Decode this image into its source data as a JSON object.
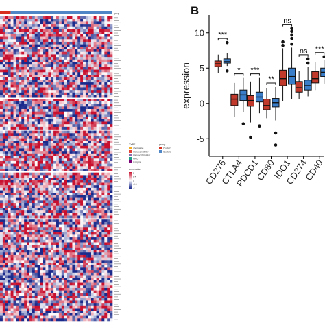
{
  "panel_b_label": "B",
  "chart_data": [
    {
      "type": "heatmap",
      "title": "",
      "top_annotation_label": "group",
      "column_groups": [
        {
          "name": "Cluster1",
          "color": "#d7301f",
          "columns": 4
        },
        {
          "name": "Cluster2",
          "color": "#4f86c6",
          "columns": 38
        }
      ],
      "row_blocks": [
        {
          "type": "chemokine",
          "color": "#f4a81d",
          "rows": 32
        },
        {
          "type": "immunoinhibitor",
          "color": "#e34234",
          "rows": 12
        },
        {
          "type": "immunostimulator",
          "color": "#8c6bb1",
          "rows": 16
        },
        {
          "type": "MHC",
          "color": "#1f9e89",
          "rows": 18
        },
        {
          "type": "receptor",
          "color": "#7a0177",
          "rows": 40
        }
      ],
      "row_labels_legible": false,
      "legend": {
        "type_title": "TYPE",
        "type_items": [
          "chemokine",
          "immunoinhibitor",
          "immunostimulator",
          "MHC",
          "receptor"
        ],
        "group_title": "group",
        "group_items": [
          "Cluster1",
          "Cluster2"
        ],
        "expression_title": "expression",
        "expression_ticks": [
          "1",
          "0.5",
          "0",
          "-0.5",
          "-1"
        ],
        "colors": {
          "high": "#c8102e",
          "mid": "#ffffff",
          "low": "#1a2a8c"
        }
      }
    },
    {
      "type": "box",
      "title": "",
      "ylabel": "expression",
      "xlabel": "",
      "ylim": [
        -7.5,
        12.5
      ],
      "yticks": [
        -5,
        0,
        5,
        10
      ],
      "categories": [
        "CD276",
        "CTLA4",
        "PDCD1",
        "CD80",
        "IDO1",
        "CD274",
        "CD40"
      ],
      "significance": [
        "***",
        "*",
        "***",
        "**",
        "ns",
        "ns",
        "***"
      ],
      "series": [
        {
          "name": "Cluster1",
          "color": "#c0392b",
          "boxes": [
            {
              "whisker_low": 4.3,
              "q1": 5.2,
              "median": 5.6,
              "q3": 6.0,
              "whisker_high": 6.9
            },
            {
              "whisker_low": -1.9,
              "q1": -0.3,
              "median": 0.6,
              "q3": 1.3,
              "whisker_high": 2.9
            },
            {
              "whisker_low": -2.7,
              "q1": -0.4,
              "median": 0.4,
              "q3": 1.1,
              "whisker_high": 3.1
            },
            {
              "whisker_low": -2.1,
              "q1": -0.9,
              "median": -0.3,
              "q3": 0.6,
              "whisker_high": 2.2
            },
            {
              "whisker_low": 0.3,
              "q1": 2.5,
              "median": 3.5,
              "q3": 4.7,
              "whisker_high": 7.8
            },
            {
              "whisker_low": 0.6,
              "q1": 1.6,
              "median": 2.2,
              "q3": 3.1,
              "whisker_high": 4.6
            },
            {
              "whisker_low": 1.9,
              "q1": 2.9,
              "median": 3.5,
              "q3": 4.5,
              "whisker_high": 5.8
            }
          ],
          "outliers": [
            [],
            [],
            [
              -4.8
            ],
            [],
            [
              8.2,
              8.7
            ],
            [],
            []
          ]
        },
        {
          "name": "Cluster2",
          "color": "#3a7dc9",
          "boxes": [
            {
              "whisker_low": 5.3,
              "q1": 5.7,
              "median": 5.9,
              "q3": 6.3,
              "whisker_high": 7.1
            },
            {
              "whisker_low": -1.2,
              "q1": 0.4,
              "median": 1.2,
              "q3": 1.9,
              "whisker_high": 3.6
            },
            {
              "whisker_low": -1.4,
              "q1": 0.2,
              "median": 0.9,
              "q3": 1.6,
              "whisker_high": 3.6
            },
            {
              "whisker_low": -2.4,
              "q1": -0.5,
              "median": 0.1,
              "q3": 0.7,
              "whisker_high": 2.3
            },
            {
              "whisker_low": 0.6,
              "q1": 2.7,
              "median": 3.8,
              "q3": 5.0,
              "whisker_high": 7.9
            },
            {
              "whisker_low": 1.0,
              "q1": 1.9,
              "median": 2.5,
              "q3": 3.3,
              "whisker_high": 5.2
            },
            {
              "whisker_low": 2.8,
              "q1": 3.8,
              "median": 4.4,
              "q3": 5.0,
              "whisker_high": 6.1
            }
          ],
          "outliers": [
            [
              4.6,
              8.6
            ],
            [
              -2.9
            ],
            [
              -3.2
            ],
            [
              -4.2,
              -5.9
            ],
            [
              8.4,
              9.2,
              9.7,
              10.2,
              10.6
            ],
            [
              5.7,
              6.3
            ],
            [
              6.6
            ]
          ]
        }
      ]
    }
  ]
}
